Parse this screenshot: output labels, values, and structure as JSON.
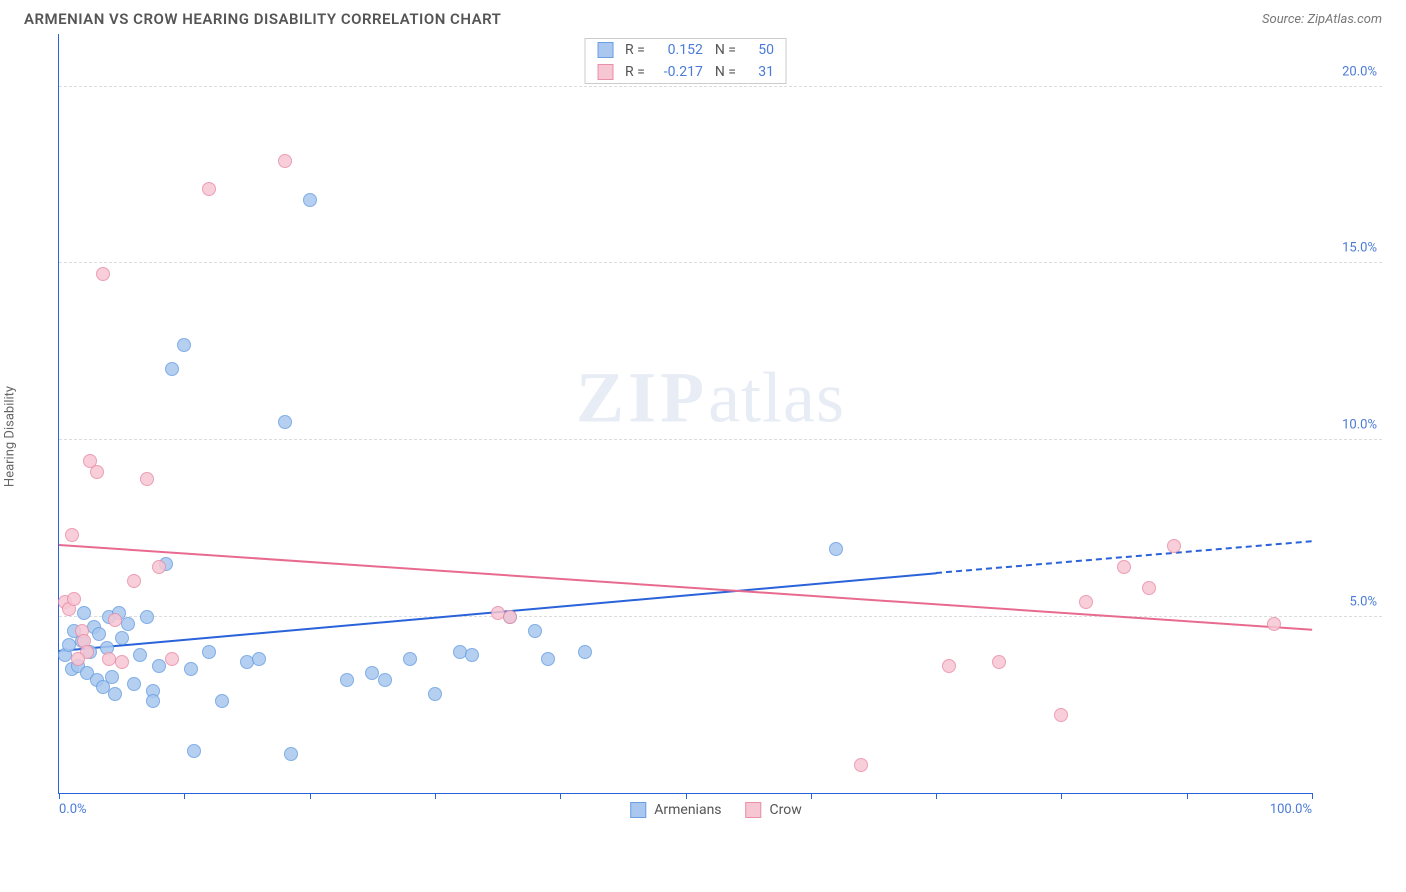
{
  "header": {
    "title": "ARMENIAN VS CROW HEARING DISABILITY CORRELATION CHART",
    "source_prefix": "Source: ",
    "source_name": "ZipAtlas.com"
  },
  "watermark": {
    "part1": "ZIP",
    "part2": "atlas"
  },
  "chart": {
    "type": "scatter",
    "ylabel": "Hearing Disability",
    "xlim": [
      0,
      100
    ],
    "ylim": [
      0,
      21.5
    ],
    "yticks": [
      5,
      10,
      15,
      20
    ],
    "ytick_labels": [
      "5.0%",
      "10.0%",
      "15.0%",
      "20.0%"
    ],
    "xtick_positions": [
      0,
      10,
      20,
      30,
      40,
      50,
      60,
      70,
      80,
      90,
      100
    ],
    "xtick_labels_shown": {
      "0": "0.0%",
      "100": "100.0%"
    },
    "background_color": "#ffffff",
    "grid_color": "#dcdcdc",
    "axis_color": "#2962d9",
    "series": [
      {
        "name": "Armenians",
        "fill_color": "#a9c7ef",
        "stroke_color": "#6aa0e2",
        "trend_color": "#2962d9",
        "marker_radius": 7,
        "R": "0.152",
        "N": "50",
        "trend": {
          "x1": 0,
          "y1": 4.0,
          "x2": 70,
          "y2": 6.2,
          "extend_x2": 100,
          "extend_y2": 7.1,
          "dash_extend": true
        },
        "points": [
          [
            0.5,
            3.9
          ],
          [
            0.8,
            4.2
          ],
          [
            1.0,
            3.5
          ],
          [
            1.2,
            4.6
          ],
          [
            1.5,
            3.6
          ],
          [
            1.8,
            4.3
          ],
          [
            2.0,
            5.1
          ],
          [
            2.2,
            3.4
          ],
          [
            2.5,
            4.0
          ],
          [
            2.8,
            4.7
          ],
          [
            3.0,
            3.2
          ],
          [
            3.2,
            4.5
          ],
          [
            3.5,
            3.0
          ],
          [
            4.0,
            5.0
          ],
          [
            4.2,
            3.3
          ],
          [
            4.5,
            2.8
          ],
          [
            5.0,
            4.4
          ],
          [
            5.5,
            4.8
          ],
          [
            6.0,
            3.1
          ],
          [
            6.5,
            3.9
          ],
          [
            7.0,
            5.0
          ],
          [
            7.5,
            2.9
          ],
          [
            8.0,
            3.6
          ],
          [
            8.5,
            6.5
          ],
          [
            9.0,
            12.0
          ],
          [
            10.0,
            12.7
          ],
          [
            10.5,
            3.5
          ],
          [
            10.8,
            1.2
          ],
          [
            12.0,
            4.0
          ],
          [
            13.0,
            2.6
          ],
          [
            15.0,
            3.7
          ],
          [
            16.0,
            3.8
          ],
          [
            18.0,
            10.5
          ],
          [
            18.5,
            1.1
          ],
          [
            20.0,
            16.8
          ],
          [
            23.0,
            3.2
          ],
          [
            25.0,
            3.4
          ],
          [
            26.0,
            3.2
          ],
          [
            28.0,
            3.8
          ],
          [
            30.0,
            2.8
          ],
          [
            32.0,
            4.0
          ],
          [
            33.0,
            3.9
          ],
          [
            36.0,
            5.0
          ],
          [
            38.0,
            4.6
          ],
          [
            39.0,
            3.8
          ],
          [
            42.0,
            4.0
          ],
          [
            62.0,
            6.9
          ],
          [
            7.5,
            2.6
          ],
          [
            4.8,
            5.1
          ],
          [
            3.8,
            4.1
          ]
        ]
      },
      {
        "name": "Crow",
        "fill_color": "#f6c6d3",
        "stroke_color": "#e98fa8",
        "trend_color": "#e86b8f",
        "marker_radius": 7,
        "R": "-0.217",
        "N": "31",
        "trend": {
          "x1": 0,
          "y1": 7.0,
          "x2": 100,
          "y2": 4.6,
          "dash_extend": false
        },
        "points": [
          [
            0.5,
            5.4
          ],
          [
            0.8,
            5.2
          ],
          [
            1.0,
            7.3
          ],
          [
            1.2,
            5.5
          ],
          [
            1.8,
            4.6
          ],
          [
            2.0,
            4.3
          ],
          [
            2.5,
            9.4
          ],
          [
            3.0,
            9.1
          ],
          [
            3.5,
            14.7
          ],
          [
            4.0,
            3.8
          ],
          [
            5.0,
            3.7
          ],
          [
            6.0,
            6.0
          ],
          [
            7.0,
            8.9
          ],
          [
            8.0,
            6.4
          ],
          [
            9.0,
            3.8
          ],
          [
            12.0,
            17.1
          ],
          [
            18.0,
            17.9
          ],
          [
            35.0,
            5.1
          ],
          [
            36.0,
            5.0
          ],
          [
            64.0,
            0.8
          ],
          [
            71.0,
            3.6
          ],
          [
            75.0,
            3.7
          ],
          [
            80.0,
            2.2
          ],
          [
            82.0,
            5.4
          ],
          [
            85.0,
            6.4
          ],
          [
            87.0,
            5.8
          ],
          [
            89.0,
            7.0
          ],
          [
            97.0,
            4.8
          ],
          [
            4.5,
            4.9
          ],
          [
            2.2,
            4.0
          ],
          [
            1.5,
            3.8
          ]
        ]
      }
    ],
    "legend_bottom": [
      {
        "label": "Armenians",
        "fill": "#a9c7ef",
        "stroke": "#6aa0e2"
      },
      {
        "label": "Crow",
        "fill": "#f6c6d3",
        "stroke": "#e98fa8"
      }
    ]
  }
}
